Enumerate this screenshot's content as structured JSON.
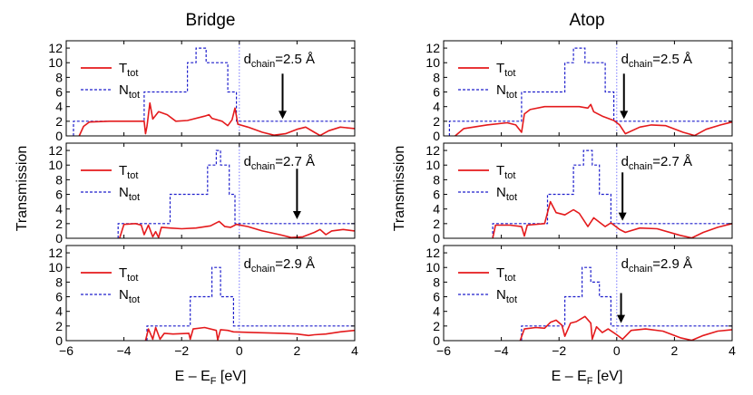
{
  "chart_data": {
    "type": "line",
    "ylabel": "Transmission",
    "xlabel": {
      "main": "E – E",
      "sub": "F",
      "unit": " [eV]"
    },
    "xlim": [
      -6,
      4
    ],
    "ylim": [
      0,
      13
    ],
    "xticks": [
      "−6",
      "−4",
      "−2",
      "0",
      "2",
      "4"
    ],
    "xtick_values": [
      -6,
      -4,
      -2,
      0,
      2,
      4
    ],
    "yticks": [
      "0",
      "2",
      "4",
      "6",
      "8",
      "10",
      "12"
    ],
    "ytick_values": [
      0,
      2,
      4,
      6,
      8,
      10,
      12
    ],
    "legend_position": "left",
    "legend": [
      {
        "main": "T",
        "sub": "tot",
        "color": "#e41a1c",
        "style": "solid"
      },
      {
        "main": "N",
        "sub": "tot",
        "color": "#1f1fcc",
        "style": "dashed"
      }
    ],
    "fermi_line": {
      "x": 0,
      "color": "#7777ff",
      "style": "dotted"
    },
    "columns": [
      {
        "title": "Bridge"
      },
      {
        "title": "Atop"
      }
    ],
    "panels": [
      {
        "id": "bridge-2.5",
        "column": 0,
        "row": 0,
        "annotation": {
          "main": "d",
          "sub": "chain",
          "rest": "=2.5 Å"
        },
        "arrow": {
          "x": 1.5,
          "y_from": 8.5,
          "y_to": 2.3
        },
        "N_tot": [
          [
            -5.75,
            0
          ],
          [
            -5.75,
            2
          ],
          [
            -3.3,
            2
          ],
          [
            -3.3,
            6
          ],
          [
            -1.8,
            6
          ],
          [
            -1.8,
            10
          ],
          [
            -1.5,
            10
          ],
          [
            -1.5,
            12
          ],
          [
            -1.15,
            12
          ],
          [
            -1.15,
            10
          ],
          [
            -0.4,
            10
          ],
          [
            -0.4,
            6
          ],
          [
            -0.1,
            6
          ],
          [
            -0.1,
            2
          ],
          [
            4,
            2
          ]
        ],
        "T_tot": [
          [
            -5.55,
            0
          ],
          [
            -5.4,
            1.3
          ],
          [
            -5.2,
            1.9
          ],
          [
            -4.5,
            2.0
          ],
          [
            -3.7,
            2.0
          ],
          [
            -3.3,
            2.0
          ],
          [
            -3.25,
            0.3
          ],
          [
            -3.2,
            1.3
          ],
          [
            -3.1,
            4.5
          ],
          [
            -3.0,
            2.3
          ],
          [
            -2.8,
            3.3
          ],
          [
            -2.5,
            2.9
          ],
          [
            -2.2,
            2.0
          ],
          [
            -1.8,
            2.1
          ],
          [
            -1.2,
            2.7
          ],
          [
            -1.05,
            2.9
          ],
          [
            -0.95,
            2.4
          ],
          [
            -0.6,
            2.0
          ],
          [
            -0.4,
            1.4
          ],
          [
            -0.25,
            2.2
          ],
          [
            -0.15,
            3.8
          ],
          [
            -0.05,
            1.6
          ],
          [
            0.3,
            1.2
          ],
          [
            0.8,
            0.5
          ],
          [
            1.2,
            0.1
          ],
          [
            1.6,
            0.3
          ],
          [
            2.0,
            0.9
          ],
          [
            2.3,
            1.2
          ],
          [
            2.6,
            0.5
          ],
          [
            2.8,
            0.05
          ],
          [
            3.1,
            0.7
          ],
          [
            3.5,
            1.2
          ],
          [
            4,
            1.0
          ]
        ]
      },
      {
        "id": "bridge-2.7",
        "column": 0,
        "row": 1,
        "annotation": {
          "main": "d",
          "sub": "chain",
          "rest": "=2.7 Å"
        },
        "arrow": {
          "x": 2.0,
          "y_from": 9.5,
          "y_to": 2.6
        },
        "N_tot": [
          [
            -4.2,
            0
          ],
          [
            -4.2,
            2
          ],
          [
            -2.4,
            2
          ],
          [
            -2.4,
            6
          ],
          [
            -1.1,
            6
          ],
          [
            -1.1,
            10
          ],
          [
            -0.8,
            10
          ],
          [
            -0.8,
            12
          ],
          [
            -0.65,
            12
          ],
          [
            -0.65,
            10
          ],
          [
            -0.35,
            10
          ],
          [
            -0.35,
            6
          ],
          [
            -0.15,
            6
          ],
          [
            -0.15,
            2
          ],
          [
            4,
            2
          ]
        ],
        "T_tot": [
          [
            -4.15,
            0
          ],
          [
            -4.0,
            1.9
          ],
          [
            -3.6,
            2.0
          ],
          [
            -3.4,
            1.8
          ],
          [
            -3.3,
            0.5
          ],
          [
            -3.15,
            1.8
          ],
          [
            -3.0,
            0.2
          ],
          [
            -2.9,
            0.9
          ],
          [
            -2.8,
            0.1
          ],
          [
            -2.7,
            1.5
          ],
          [
            -2.4,
            1.4
          ],
          [
            -2.0,
            1.3
          ],
          [
            -1.5,
            1.4
          ],
          [
            -1.0,
            1.7
          ],
          [
            -0.7,
            2.3
          ],
          [
            -0.5,
            1.6
          ],
          [
            -0.3,
            1.5
          ],
          [
            -0.1,
            1.9
          ],
          [
            0.3,
            1.6
          ],
          [
            0.8,
            1.0
          ],
          [
            1.4,
            0.5
          ],
          [
            1.8,
            0.1
          ],
          [
            2.2,
            0.2
          ],
          [
            2.6,
            0.8
          ],
          [
            2.8,
            1.2
          ],
          [
            3.0,
            0.5
          ],
          [
            3.2,
            1.0
          ],
          [
            3.6,
            1.2
          ],
          [
            4,
            1.0
          ]
        ]
      },
      {
        "id": "bridge-2.9",
        "column": 0,
        "row": 2,
        "annotation": {
          "main": "d",
          "sub": "chain",
          "rest": "=2.9 Å"
        },
        "arrow": null,
        "N_tot": [
          [
            -3.2,
            0
          ],
          [
            -3.2,
            2
          ],
          [
            -1.7,
            2
          ],
          [
            -1.7,
            6
          ],
          [
            -0.95,
            6
          ],
          [
            -0.95,
            10
          ],
          [
            -0.65,
            10
          ],
          [
            -0.65,
            6
          ],
          [
            -0.2,
            6
          ],
          [
            -0.2,
            2
          ],
          [
            4,
            2
          ]
        ],
        "T_tot": [
          [
            -3.25,
            0
          ],
          [
            -3.15,
            1.6
          ],
          [
            -3.0,
            0.2
          ],
          [
            -2.9,
            1.8
          ],
          [
            -2.75,
            0.2
          ],
          [
            -2.6,
            1.0
          ],
          [
            -2.3,
            0.9
          ],
          [
            -1.75,
            1.0
          ],
          [
            -1.7,
            0.2
          ],
          [
            -1.6,
            1.6
          ],
          [
            -1.2,
            1.8
          ],
          [
            -0.8,
            1.4
          ],
          [
            -0.75,
            0.1
          ],
          [
            -0.65,
            1.5
          ],
          [
            -0.4,
            1.4
          ],
          [
            -0.2,
            1.2
          ],
          [
            0.5,
            1.1
          ],
          [
            1.5,
            1.0
          ],
          [
            2.0,
            0.9
          ],
          [
            2.4,
            0.7
          ],
          [
            2.6,
            0.8
          ],
          [
            3.0,
            0.9
          ],
          [
            3.5,
            1.2
          ],
          [
            4,
            1.4
          ]
        ]
      },
      {
        "id": "atop-2.5",
        "column": 1,
        "row": 0,
        "annotation": {
          "main": "d",
          "sub": "chain",
          "rest": "=2.5 Å"
        },
        "arrow": {
          "x": 0.25,
          "y_from": 8.5,
          "y_to": 2.3
        },
        "N_tot": [
          [
            -5.8,
            0
          ],
          [
            -5.8,
            2
          ],
          [
            -3.3,
            2
          ],
          [
            -3.3,
            6
          ],
          [
            -1.8,
            6
          ],
          [
            -1.8,
            10
          ],
          [
            -1.5,
            10
          ],
          [
            -1.5,
            12
          ],
          [
            -1.1,
            12
          ],
          [
            -1.1,
            10
          ],
          [
            -0.4,
            10
          ],
          [
            -0.4,
            6
          ],
          [
            -0.1,
            6
          ],
          [
            -0.1,
            2
          ],
          [
            4,
            2
          ]
        ],
        "T_tot": [
          [
            -5.6,
            0
          ],
          [
            -5.3,
            1.0
          ],
          [
            -4.5,
            1.5
          ],
          [
            -3.8,
            1.8
          ],
          [
            -3.5,
            1.5
          ],
          [
            -3.3,
            0.5
          ],
          [
            -3.2,
            3.0
          ],
          [
            -3.0,
            3.6
          ],
          [
            -2.5,
            4.0
          ],
          [
            -1.8,
            4.0
          ],
          [
            -1.3,
            4.0
          ],
          [
            -1.0,
            3.8
          ],
          [
            -0.9,
            4.3
          ],
          [
            -0.8,
            3.3
          ],
          [
            -0.5,
            2.7
          ],
          [
            -0.1,
            2.1
          ],
          [
            0.1,
            1.5
          ],
          [
            0.3,
            0.3
          ],
          [
            0.8,
            1.2
          ],
          [
            1.2,
            1.5
          ],
          [
            1.7,
            1.4
          ],
          [
            2.3,
            0.5
          ],
          [
            2.7,
            0.05
          ],
          [
            3.1,
            0.9
          ],
          [
            3.6,
            1.5
          ],
          [
            4,
            1.9
          ]
        ]
      },
      {
        "id": "atop-2.7",
        "column": 1,
        "row": 1,
        "annotation": {
          "main": "d",
          "sub": "chain",
          "rest": "=2.7 Å"
        },
        "arrow": {
          "x": 0.2,
          "y_from": 9.0,
          "y_to": 2.4
        },
        "N_tot": [
          [
            -4.3,
            0
          ],
          [
            -4.3,
            2
          ],
          [
            -2.4,
            2
          ],
          [
            -2.4,
            6
          ],
          [
            -1.5,
            6
          ],
          [
            -1.5,
            10
          ],
          [
            -1.15,
            10
          ],
          [
            -1.15,
            12
          ],
          [
            -0.85,
            12
          ],
          [
            -0.85,
            10
          ],
          [
            -0.6,
            10
          ],
          [
            -0.6,
            6
          ],
          [
            -0.2,
            6
          ],
          [
            -0.2,
            2
          ],
          [
            4,
            2
          ]
        ],
        "T_tot": [
          [
            -4.3,
            0
          ],
          [
            -4.2,
            1.8
          ],
          [
            -3.7,
            1.8
          ],
          [
            -3.3,
            1.6
          ],
          [
            -3.2,
            0.3
          ],
          [
            -3.1,
            1.8
          ],
          [
            -2.5,
            2.0
          ],
          [
            -2.3,
            5.0
          ],
          [
            -2.1,
            3.5
          ],
          [
            -1.8,
            3.2
          ],
          [
            -1.5,
            3.9
          ],
          [
            -1.3,
            3.4
          ],
          [
            -1.0,
            1.6
          ],
          [
            -0.8,
            2.8
          ],
          [
            -0.6,
            2.2
          ],
          [
            -0.4,
            1.6
          ],
          [
            -0.2,
            2.1
          ],
          [
            0.1,
            1.2
          ],
          [
            0.3,
            0.8
          ],
          [
            0.8,
            1.4
          ],
          [
            1.4,
            1.3
          ],
          [
            2.2,
            0.4
          ],
          [
            2.6,
            0.05
          ],
          [
            3.0,
            0.8
          ],
          [
            3.5,
            1.5
          ],
          [
            4,
            2.0
          ]
        ]
      },
      {
        "id": "atop-2.9",
        "column": 1,
        "row": 2,
        "annotation": {
          "main": "d",
          "sub": "chain",
          "rest": "=2.9 Å"
        },
        "arrow": {
          "x": 0.15,
          "y_from": 6.5,
          "y_to": 2.4
        },
        "N_tot": [
          [
            -3.3,
            0
          ],
          [
            -3.3,
            2
          ],
          [
            -1.8,
            2
          ],
          [
            -1.8,
            6
          ],
          [
            -1.2,
            6
          ],
          [
            -1.2,
            10
          ],
          [
            -0.9,
            10
          ],
          [
            -0.9,
            8
          ],
          [
            -0.6,
            8
          ],
          [
            -0.6,
            6
          ],
          [
            -0.2,
            6
          ],
          [
            -0.2,
            2
          ],
          [
            4,
            2
          ]
        ],
        "T_tot": [
          [
            -3.35,
            0
          ],
          [
            -3.2,
            1.6
          ],
          [
            -2.8,
            1.8
          ],
          [
            -2.5,
            1.7
          ],
          [
            -2.3,
            2.5
          ],
          [
            -2.1,
            2.8
          ],
          [
            -1.9,
            2.1
          ],
          [
            -1.8,
            0.6
          ],
          [
            -1.6,
            2.4
          ],
          [
            -1.4,
            2.6
          ],
          [
            -1.1,
            3.3
          ],
          [
            -0.9,
            2.4
          ],
          [
            -0.85,
            0.2
          ],
          [
            -0.7,
            1.9
          ],
          [
            -0.5,
            1.1
          ],
          [
            -0.3,
            1.6
          ],
          [
            0.0,
            0.8
          ],
          [
            0.2,
            0.2
          ],
          [
            0.5,
            1.4
          ],
          [
            1.0,
            1.6
          ],
          [
            1.6,
            1.3
          ],
          [
            2.2,
            0.4
          ],
          [
            2.6,
            0.05
          ],
          [
            3.0,
            0.7
          ],
          [
            3.5,
            1.3
          ],
          [
            4,
            1.5
          ]
        ]
      }
    ]
  }
}
